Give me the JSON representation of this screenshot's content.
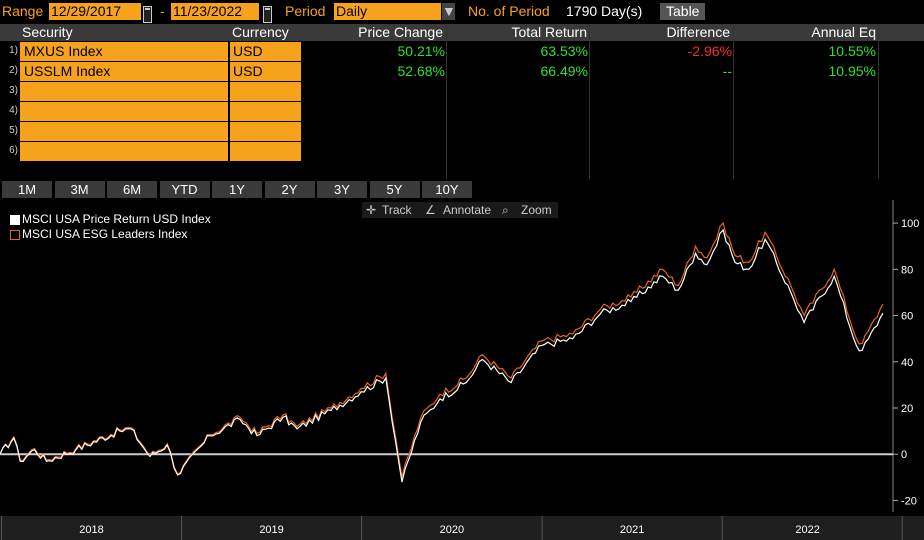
{
  "topbar": {
    "range_label": "Range",
    "start_date": "12/29/2017",
    "dash": "-",
    "end_date": "11/23/2022",
    "period_label": "Period",
    "period_value": "Daily",
    "nperiod_label": "No. of Period",
    "nperiod_value": "1790 Day(s)",
    "table_button": "Table"
  },
  "table": {
    "headers": [
      "Security",
      "Currency",
      "Price Change",
      "Total Return",
      "Difference",
      "Annual Eq"
    ],
    "rows": [
      {
        "idx": "1)",
        "security": "MXUS Index",
        "currency": "USD",
        "price_change": "50.21%",
        "total_return": "63.53%",
        "difference": "-2.96%",
        "annual_eq": "10.55%"
      },
      {
        "idx": "2)",
        "security": "USSLM Index",
        "currency": "USD",
        "price_change": "52.68%",
        "total_return": "66.49%",
        "difference": "--",
        "annual_eq": "10.95%"
      },
      {
        "idx": "3)",
        "security": "",
        "currency": "",
        "price_change": "",
        "total_return": "",
        "difference": "",
        "annual_eq": ""
      },
      {
        "idx": "4)",
        "security": "",
        "currency": "",
        "price_change": "",
        "total_return": "",
        "difference": "",
        "annual_eq": ""
      },
      {
        "idx": "5)",
        "security": "",
        "currency": "",
        "price_change": "",
        "total_return": "",
        "difference": "",
        "annual_eq": ""
      },
      {
        "idx": "6)",
        "security": "",
        "currency": "",
        "price_change": "",
        "total_return": "",
        "difference": "",
        "annual_eq": ""
      }
    ]
  },
  "periods": [
    "1M",
    "3M",
    "6M",
    "YTD",
    "1Y",
    "2Y",
    "3Y",
    "5Y",
    "10Y"
  ],
  "toolbar": {
    "track": "Track",
    "annotate": "Annotate",
    "zoom": "Zoom"
  },
  "colors": {
    "accent": "#f7a21b",
    "positive": "#2ee02e",
    "negative": "#ff2a2a",
    "series1": "#ffffff",
    "series2": "#e8651a"
  },
  "chart_data": {
    "type": "line",
    "xlabel": "",
    "ylabel": "",
    "x_tick_labels": [
      "2018",
      "2019",
      "2020",
      "2021",
      "2022"
    ],
    "y_ticks": [
      -20,
      0,
      20,
      40,
      60,
      80,
      100
    ],
    "ylim": [
      -25,
      110
    ],
    "xlim": [
      "2017-12-29",
      "2022-11-23"
    ],
    "grid": false,
    "legend_position": "top-left",
    "series": [
      {
        "name": "MSCI USA Price Return USD Index",
        "color": "#ffffff",
        "points": [
          [
            "2017-12-29",
            0
          ],
          [
            "2018-01-26",
            7
          ],
          [
            "2018-02-08",
            -3
          ],
          [
            "2018-03-09",
            2
          ],
          [
            "2018-04-02",
            -3
          ],
          [
            "2018-06-01",
            2
          ],
          [
            "2018-08-29",
            10
          ],
          [
            "2018-09-20",
            11
          ],
          [
            "2018-10-29",
            -1
          ],
          [
            "2018-12-03",
            4
          ],
          [
            "2018-12-24",
            -9
          ],
          [
            "2019-02-28",
            8
          ],
          [
            "2019-04-30",
            15
          ],
          [
            "2019-06-03",
            8
          ],
          [
            "2019-07-26",
            16
          ],
          [
            "2019-08-23",
            11
          ],
          [
            "2019-10-31",
            19
          ],
          [
            "2019-12-31",
            27
          ],
          [
            "2020-02-19",
            33
          ],
          [
            "2020-03-23",
            -12
          ],
          [
            "2020-04-30",
            14
          ],
          [
            "2020-06-08",
            24
          ],
          [
            "2020-07-31",
            31
          ],
          [
            "2020-09-02",
            41
          ],
          [
            "2020-10-30",
            31
          ],
          [
            "2020-12-31",
            47
          ],
          [
            "2021-03-04",
            50
          ],
          [
            "2021-04-30",
            61
          ],
          [
            "2021-06-30",
            66
          ],
          [
            "2021-09-02",
            77
          ],
          [
            "2021-10-04",
            71
          ],
          [
            "2021-11-08",
            87
          ],
          [
            "2021-12-01",
            82
          ],
          [
            "2022-01-03",
            97
          ],
          [
            "2022-01-27",
            83
          ],
          [
            "2022-02-24",
            80
          ],
          [
            "2022-03-29",
            93
          ],
          [
            "2022-05-20",
            70
          ],
          [
            "2022-06-16",
            57
          ],
          [
            "2022-08-16",
            77
          ],
          [
            "2022-09-30",
            47
          ],
          [
            "2022-10-12",
            45
          ],
          [
            "2022-11-23",
            61
          ]
        ]
      },
      {
        "name": "MSCI USA ESG Leaders Index",
        "color": "#e8651a",
        "points": [
          [
            "2017-12-29",
            0
          ],
          [
            "2018-01-26",
            7.5
          ],
          [
            "2018-02-08",
            -2.5
          ],
          [
            "2018-03-09",
            2.5
          ],
          [
            "2018-04-02",
            -2.5
          ],
          [
            "2018-06-01",
            2.5
          ],
          [
            "2018-08-29",
            10.5
          ],
          [
            "2018-09-20",
            11.5
          ],
          [
            "2018-10-29",
            -0.5
          ],
          [
            "2018-12-03",
            4.5
          ],
          [
            "2018-12-24",
            -8.5
          ],
          [
            "2019-02-28",
            8.5
          ],
          [
            "2019-04-30",
            16
          ],
          [
            "2019-06-03",
            9
          ],
          [
            "2019-07-26",
            17
          ],
          [
            "2019-08-23",
            12
          ],
          [
            "2019-10-31",
            20
          ],
          [
            "2019-12-31",
            28.5
          ],
          [
            "2020-02-19",
            35
          ],
          [
            "2020-03-23",
            -10
          ],
          [
            "2020-04-30",
            16
          ],
          [
            "2020-06-08",
            26
          ],
          [
            "2020-07-31",
            33
          ],
          [
            "2020-09-02",
            43
          ],
          [
            "2020-10-30",
            33
          ],
          [
            "2020-12-31",
            49
          ],
          [
            "2021-03-04",
            52
          ],
          [
            "2021-04-30",
            63
          ],
          [
            "2021-06-30",
            68
          ],
          [
            "2021-09-02",
            80
          ],
          [
            "2021-10-04",
            73
          ],
          [
            "2021-11-08",
            90
          ],
          [
            "2021-12-01",
            85
          ],
          [
            "2022-01-03",
            100
          ],
          [
            "2022-01-27",
            86
          ],
          [
            "2022-02-24",
            83
          ],
          [
            "2022-03-29",
            96
          ],
          [
            "2022-05-20",
            73
          ],
          [
            "2022-06-16",
            60
          ],
          [
            "2022-08-16",
            80
          ],
          [
            "2022-09-30",
            50
          ],
          [
            "2022-10-12",
            48
          ],
          [
            "2022-11-23",
            65
          ]
        ]
      }
    ]
  }
}
